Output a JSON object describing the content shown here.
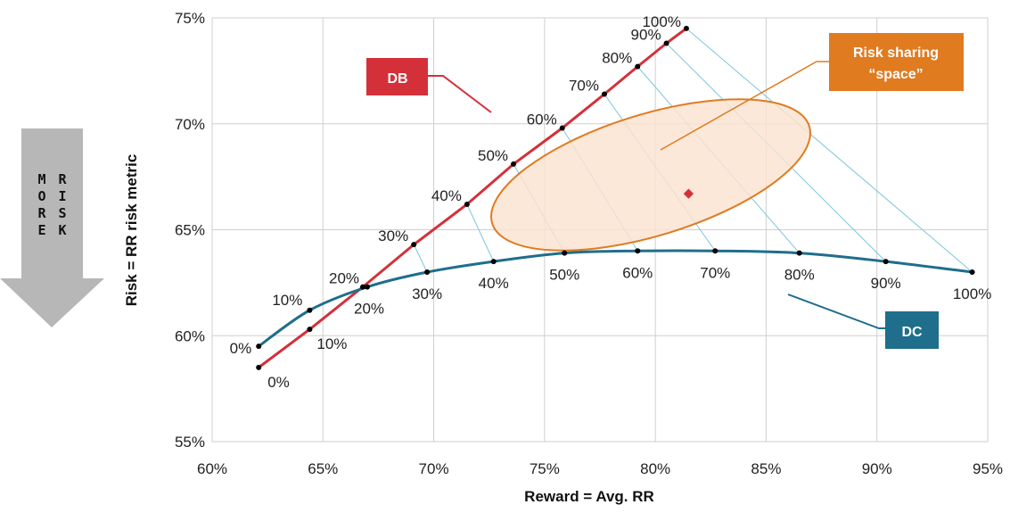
{
  "chart_data": {
    "type": "line",
    "xlabel": "Reward = Avg. RR",
    "ylabel": "Risk = RR risk metric",
    "xlim": [
      0.6,
      0.95
    ],
    "ylim": [
      0.55,
      0.75
    ],
    "x_ticks": [
      "60%",
      "65%",
      "70%",
      "75%",
      "80%",
      "85%",
      "90%",
      "95%"
    ],
    "y_ticks": [
      "55%",
      "60%",
      "65%",
      "70%",
      "75%"
    ],
    "grid": true,
    "series": [
      {
        "name": "DB",
        "color": "#d4303a",
        "points": [
          {
            "label": "0%",
            "x": 0.621,
            "y": 0.585
          },
          {
            "label": "10%",
            "x": 0.644,
            "y": 0.603
          },
          {
            "label": "20%",
            "x": 0.668,
            "y": 0.623
          },
          {
            "label": "30%",
            "x": 0.691,
            "y": 0.643
          },
          {
            "label": "40%",
            "x": 0.715,
            "y": 0.662
          },
          {
            "label": "50%",
            "x": 0.736,
            "y": 0.681
          },
          {
            "label": "60%",
            "x": 0.758,
            "y": 0.698
          },
          {
            "label": "70%",
            "x": 0.777,
            "y": 0.714
          },
          {
            "label": "80%",
            "x": 0.792,
            "y": 0.727
          },
          {
            "label": "90%",
            "x": 0.805,
            "y": 0.738
          },
          {
            "label": "100%",
            "x": 0.814,
            "y": 0.745
          }
        ]
      },
      {
        "name": "DC",
        "color": "#1f6e8c",
        "points": [
          {
            "label": "0%",
            "x": 0.621,
            "y": 0.595
          },
          {
            "label": "10%",
            "x": 0.644,
            "y": 0.612
          },
          {
            "label": "20%",
            "x": 0.67,
            "y": 0.623
          },
          {
            "label": "30%",
            "x": 0.697,
            "y": 0.63
          },
          {
            "label": "40%",
            "x": 0.727,
            "y": 0.635
          },
          {
            "label": "50%",
            "x": 0.759,
            "y": 0.639
          },
          {
            "label": "60%",
            "x": 0.792,
            "y": 0.64
          },
          {
            "label": "70%",
            "x": 0.827,
            "y": 0.64
          },
          {
            "label": "80%",
            "x": 0.865,
            "y": 0.639
          },
          {
            "label": "90%",
            "x": 0.904,
            "y": 0.635
          },
          {
            "label": "100%",
            "x": 0.943,
            "y": 0.63
          }
        ]
      }
    ],
    "annotations": {
      "db_label": "DB",
      "dc_label": "DC",
      "space_label_line1": "Risk sharing",
      "space_label_line2": "“space”",
      "arrow_text": "MORE RISK",
      "marker_point": {
        "x": 0.815,
        "y": 0.667
      }
    },
    "colors": {
      "db": "#d4303a",
      "dc": "#1f6e8c",
      "space_fill": "#fbe3cf",
      "space_stroke": "#e07b20",
      "space_box": "#e07b20",
      "connector": "#7ec6dc",
      "arrow": "#b7b7b7",
      "grid": "#cfcfcf"
    }
  }
}
